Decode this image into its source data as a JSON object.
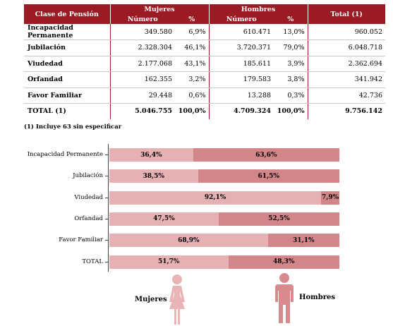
{
  "table": {
    "col_clase": "Clase de Pensión",
    "col_mujeres": "Mujeres",
    "col_hombres": "Hombres",
    "col_total": "Total (1)",
    "sub_numero": "Número",
    "sub_pct": "%",
    "rows": [
      {
        "label": "Incapacidad Permanente",
        "m_num": "349.580",
        "m_pct": "6,9%",
        "h_num": "610.471",
        "h_pct": "13,0%",
        "total": "960.052"
      },
      {
        "label": "Jubilación",
        "m_num": "2.328.304",
        "m_pct": "46,1%",
        "h_num": "3.720.371",
        "h_pct": "79,0%",
        "total": "6.048.718"
      },
      {
        "label": "Viudedad",
        "m_num": "2.177.068",
        "m_pct": "43,1%",
        "h_num": "185.611",
        "h_pct": "3,9%",
        "total": "2.362.694"
      },
      {
        "label": "Orfandad",
        "m_num": "162.355",
        "m_pct": "3,2%",
        "h_num": "179.583",
        "h_pct": "3,8%",
        "total": "341.942"
      },
      {
        "label": "Favor Familiar",
        "m_num": "29.448",
        "m_pct": "0,6%",
        "h_num": "13.288",
        "h_pct": "0,3%",
        "total": "42.736"
      }
    ],
    "total_row": {
      "label": "TOTAL (1)",
      "m_num": "5.046.755",
      "m_pct": "100,0%",
      "h_num": "4.709.324",
      "h_pct": "100,0%",
      "total": "9.756.142"
    },
    "note": "(1) Incluye 63 sin especificar"
  },
  "chart_data": {
    "type": "bar",
    "stacked": true,
    "orientation": "horizontal",
    "categories": [
      "Incapacidad Permanente",
      "Jubilación",
      "Viudedad",
      "Orfandad",
      "Favor Familiar",
      "TOTAL"
    ],
    "series": [
      {
        "name": "Mujeres",
        "values": [
          36.4,
          38.5,
          92.1,
          47.5,
          68.9,
          51.7
        ],
        "labels": [
          "36,4%",
          "38,5%",
          "92,1%",
          "47,5%",
          "68,9%",
          "51,7%"
        ],
        "color": "#e5b1b3"
      },
      {
        "name": "Hombres",
        "values": [
          63.6,
          61.5,
          7.9,
          52.5,
          31.1,
          48.3
        ],
        "labels": [
          "63,6%",
          "61,5%",
          "7,9%",
          "52,5%",
          "31,1%",
          "48,3%"
        ],
        "color": "#d3868a"
      }
    ],
    "xlim": [
      0,
      100
    ]
  },
  "legend": {
    "mujeres": "Mujeres",
    "hombres": "Hombres"
  },
  "colors": {
    "header": "#9b1b24",
    "mujeres": "#e5b1b3",
    "hombres": "#d3868a"
  }
}
